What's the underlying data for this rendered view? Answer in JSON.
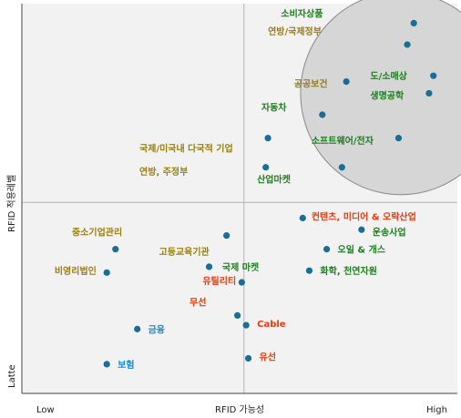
{
  "chart_data": {
    "type": "scatter",
    "title": "",
    "xlabel": "RFID 가능성",
    "ylabel": "RFID 적용레벨",
    "xlim": [
      0,
      100
    ],
    "ylim": [
      0,
      100
    ],
    "x_tick_labels": {
      "low": "Low",
      "high": "High"
    },
    "y_tick_labels": {
      "low": "Latte"
    },
    "quadrant_divider": {
      "x": 51,
      "y": 49
    },
    "highlight_ellipse": {
      "cx": 87,
      "cy": 77,
      "rx": 23,
      "ry": 26,
      "fill": "#d6d6d6",
      "stroke": "#888888"
    },
    "colors": {
      "green": "#1e7d1e",
      "olive": "#9a7d17",
      "red": "#e83a0c",
      "blue": "#1a88d6",
      "marker": "#1a6e96",
      "plot_bg": "#f2f2f2",
      "axis": "#444444",
      "divider": "#b5b5b5"
    },
    "points": [
      {
        "x": 90,
        "y": 95
      },
      {
        "x": 88.5,
        "y": 89.5
      },
      {
        "x": 94.5,
        "y": 81.5
      },
      {
        "x": 93.5,
        "y": 77
      },
      {
        "x": 74.5,
        "y": 80
      },
      {
        "x": 69,
        "y": 71.5
      },
      {
        "x": 86.5,
        "y": 65.5
      },
      {
        "x": 73.5,
        "y": 58
      },
      {
        "x": 56.5,
        "y": 65.5
      },
      {
        "x": 56,
        "y": 58
      },
      {
        "x": 64.5,
        "y": 45
      },
      {
        "x": 78,
        "y": 42
      },
      {
        "x": 70,
        "y": 37
      },
      {
        "x": 66,
        "y": 31.5
      },
      {
        "x": 47,
        "y": 40.5
      },
      {
        "x": 21.5,
        "y": 37
      },
      {
        "x": 43,
        "y": 32.5
      },
      {
        "x": 50.5,
        "y": 28.5
      },
      {
        "x": 19.5,
        "y": 31
      },
      {
        "x": 49.5,
        "y": 20
      },
      {
        "x": 51.5,
        "y": 17.5
      },
      {
        "x": 26.5,
        "y": 16.5
      },
      {
        "x": 52,
        "y": 9
      },
      {
        "x": 19.5,
        "y": 7.5
      }
    ],
    "annotations": [
      {
        "text": "소비자상품",
        "x": 59.5,
        "y": 97.5,
        "color": "green"
      },
      {
        "text": "연방/국제정부",
        "x": 56.5,
        "y": 93,
        "color": "olive"
      },
      {
        "text": "공공보건",
        "x": 62.5,
        "y": 79.5,
        "color": "olive"
      },
      {
        "text": "도/소매상",
        "x": 80,
        "y": 81.5,
        "color": "green"
      },
      {
        "text": "생명공학",
        "x": 80,
        "y": 76.5,
        "color": "green"
      },
      {
        "text": "자동차",
        "x": 55,
        "y": 73.5,
        "color": "green"
      },
      {
        "text": "소프트웨어/전자",
        "x": 66.5,
        "y": 65,
        "color": "green"
      },
      {
        "text": "국제/미국내 다국적 기업",
        "x": 27,
        "y": 63,
        "color": "olive"
      },
      {
        "text": "연방, 주정부",
        "x": 27,
        "y": 57,
        "color": "olive"
      },
      {
        "text": "산업마켓",
        "x": 54,
        "y": 55,
        "color": "green"
      },
      {
        "text": "컨텐츠, 미디어 & 오락산업",
        "x": 66.5,
        "y": 45.5,
        "color": "red"
      },
      {
        "text": "운송사업",
        "x": 80.5,
        "y": 41.5,
        "color": "green"
      },
      {
        "text": "중소기업관리",
        "x": 11.5,
        "y": 41.5,
        "color": "olive"
      },
      {
        "text": "고등교육기관",
        "x": 31.5,
        "y": 36.5,
        "color": "olive"
      },
      {
        "text": "오일 & 개스",
        "x": 72.5,
        "y": 37,
        "color": "green"
      },
      {
        "text": "국제 마켓",
        "x": 46,
        "y": 32.5,
        "color": "green"
      },
      {
        "text": "화학, 천연자원",
        "x": 68.5,
        "y": 31.5,
        "color": "green"
      },
      {
        "text": "비영리법인",
        "x": 7.5,
        "y": 31.5,
        "color": "olive"
      },
      {
        "text": "유틸리티",
        "x": 41.5,
        "y": 29,
        "color": "red"
      },
      {
        "text": "무선",
        "x": 38.5,
        "y": 23.5,
        "color": "red"
      },
      {
        "text": "Cable",
        "x": 54,
        "y": 18,
        "color": "red"
      },
      {
        "text": "금융",
        "x": 29,
        "y": 16.5,
        "color": "blue"
      },
      {
        "text": "유선",
        "x": 54.5,
        "y": 9.5,
        "color": "red"
      },
      {
        "text": "보험",
        "x": 22,
        "y": 7.5,
        "color": "blue"
      }
    ]
  }
}
